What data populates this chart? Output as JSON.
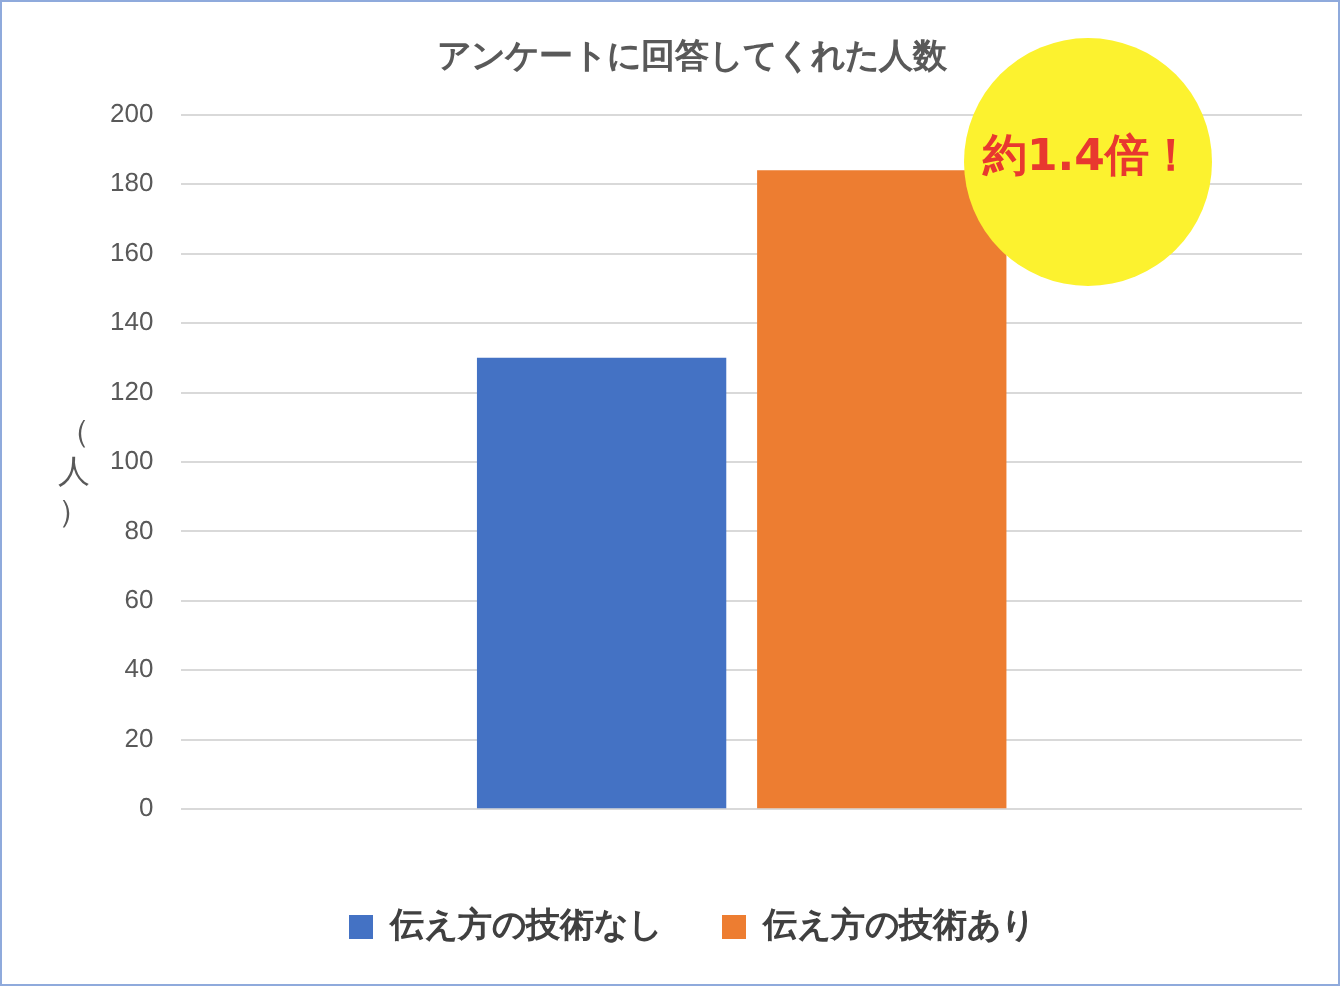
{
  "chart_data": {
    "type": "bar",
    "title": "アンケートに回答してくれた人数",
    "ylabel": "（人）",
    "categories": [
      null
    ],
    "series": [
      {
        "name": "伝え方の技術なし",
        "color": "#4472c4",
        "values": [
          130
        ]
      },
      {
        "name": "伝え方の技術あり",
        "color": "#ed7d31",
        "values": [
          184
        ]
      }
    ],
    "ylim": [
      0,
      200
    ],
    "yticks": [
      0,
      20,
      40,
      60,
      80,
      100,
      120,
      140,
      160,
      180,
      200
    ],
    "grid": "y",
    "legend": "bottom",
    "annotations": [
      "約1.4倍！"
    ]
  }
}
